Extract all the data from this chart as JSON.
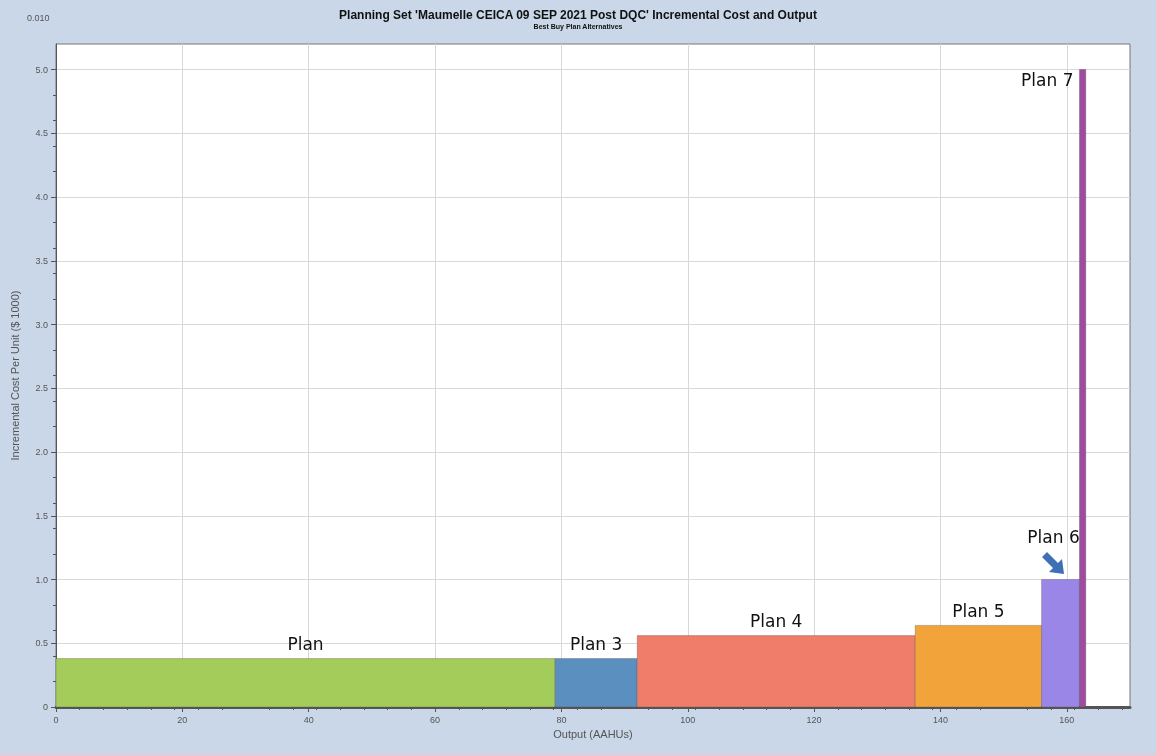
{
  "chart_data": {
    "type": "histogram",
    "title": "Planning Set 'Maumelle CEICA 09 SEP 2021 Post DQC' Incremental Cost and Output",
    "subtitle": "Best Buy Plan Alternatives",
    "xlabel": "Output (AAHUs)",
    "ylabel": "Incremental Cost Per Unit ($ 1000)",
    "bins": [
      0,
      79,
      92,
      136,
      156,
      162,
      163
    ],
    "values": [
      0.38,
      0.38,
      0.56,
      0.64,
      1.0,
      5.0
    ],
    "colors": [
      "#a4cc5a",
      "#5b8fbf",
      "#f07c6a",
      "#f2a33a",
      "#9a86e6",
      "#a04aa0"
    ],
    "xlim": [
      0,
      170
    ],
    "xticks": [
      0,
      20,
      40,
      60,
      80,
      100,
      120,
      140,
      160
    ],
    "ylim": [
      0,
      5.2
    ],
    "yticks": [
      0,
      {
        "value": 0.5,
        "label": "0.5"
      },
      {
        "value": 1,
        "label": "1.0"
      },
      {
        "value": 1.5,
        "label": "1.5"
      },
      {
        "value": 2,
        "label": "2.0"
      },
      {
        "value": 2.5,
        "label": "2.5"
      },
      {
        "value": 3,
        "label": "3.0"
      },
      {
        "value": 3.5,
        "label": "3.5"
      },
      {
        "value": 4,
        "label": "4.0"
      },
      {
        "value": 4.5,
        "label": "4.5"
      },
      {
        "value": 5,
        "label": "5.0"
      }
    ],
    "grid": true,
    "annotations": [
      "0.010",
      "Plan",
      "Plan 3",
      "Plan 4",
      "Plan 5",
      "Plan 6",
      "Plan 7"
    ]
  }
}
